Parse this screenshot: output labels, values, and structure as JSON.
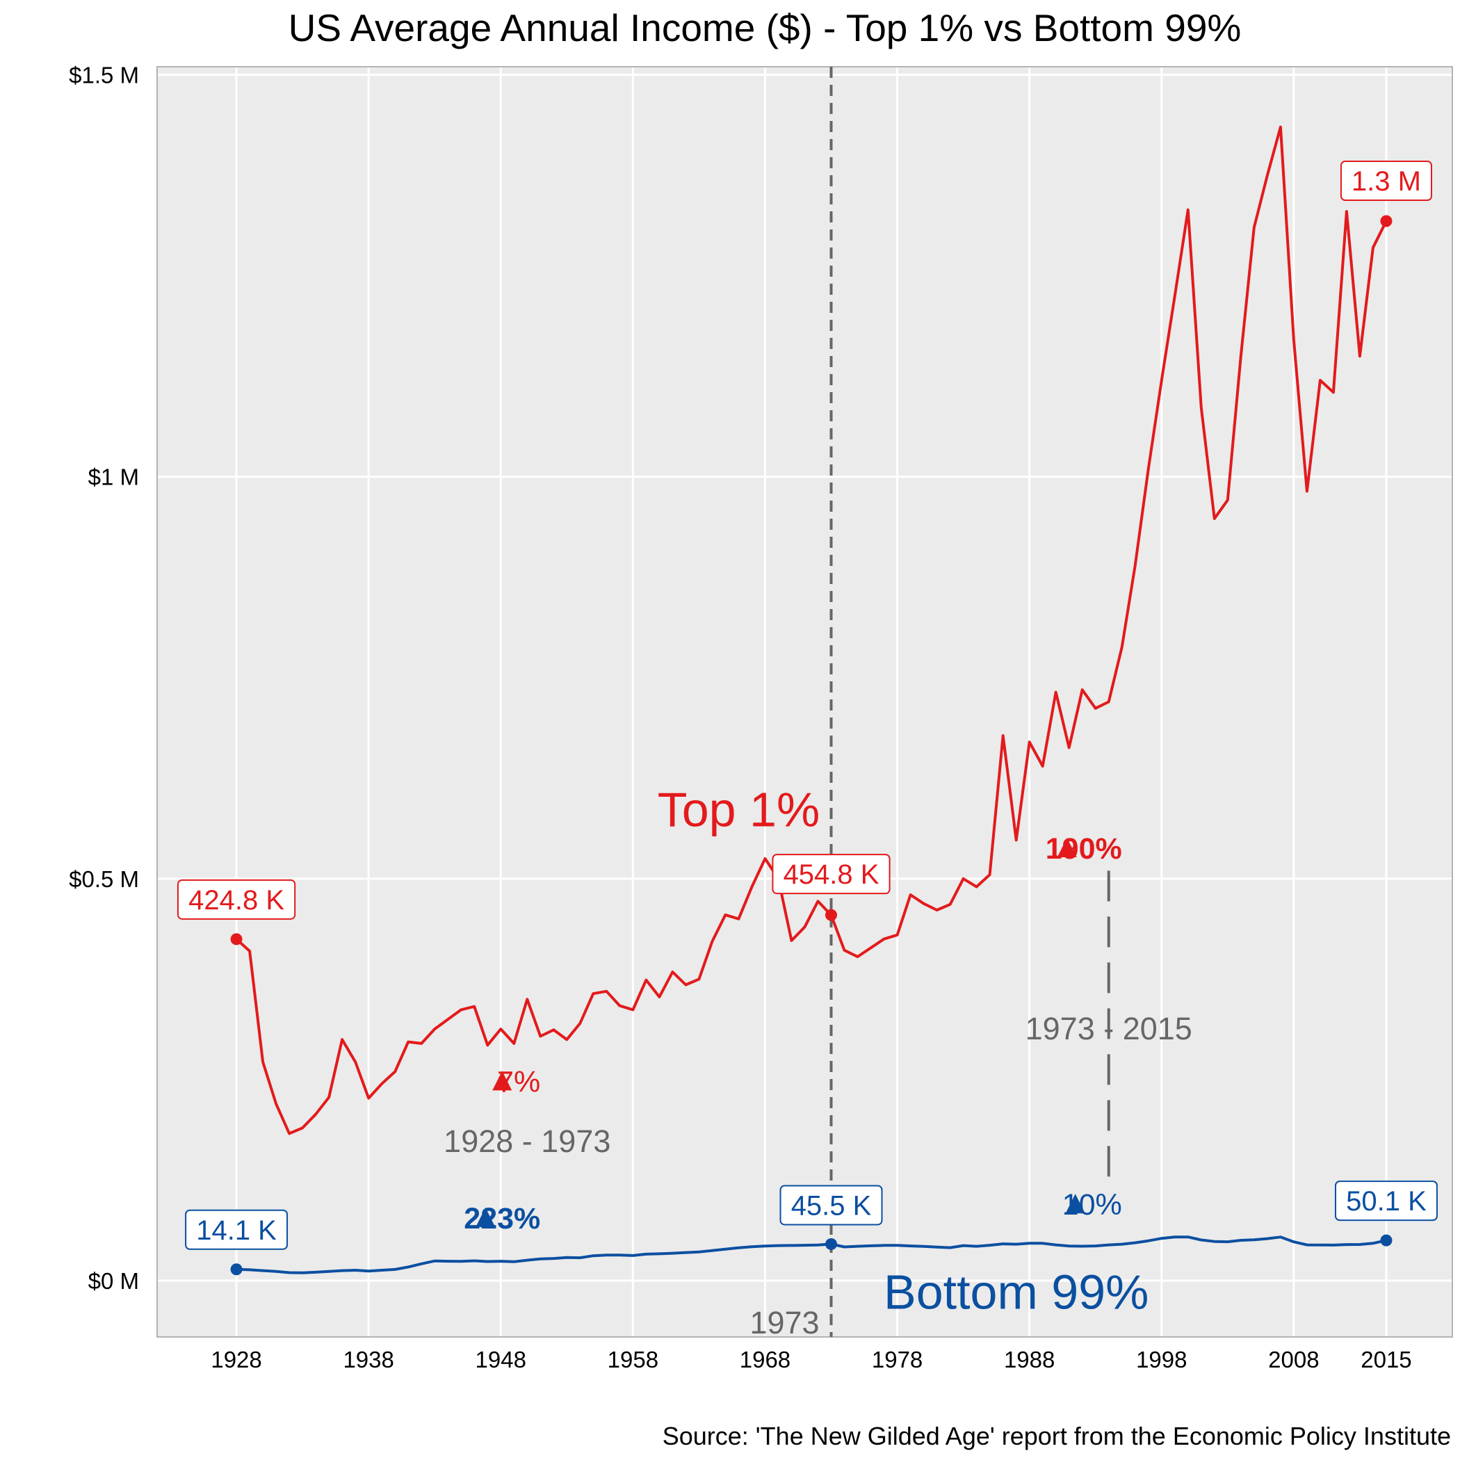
{
  "chart_data": {
    "type": "line",
    "title": "US Average Annual Income ($) - Top 1% vs Bottom 99%",
    "caption": "Source: 'The New Gilded Age' report from the Economic Policy Institute",
    "xlim": [
      1922,
      2020
    ],
    "ylim": [
      -70000,
      1510000
    ],
    "x_ticks": [
      1928,
      1938,
      1948,
      1958,
      1968,
      1978,
      1988,
      1998,
      2008,
      2015
    ],
    "x_tick_labels": [
      "1928",
      "1938",
      "1948",
      "1958",
      "1968",
      "1978",
      "1988",
      "1998",
      "2008",
      "2015"
    ],
    "y_ticks": [
      0,
      500000,
      1000000,
      1500000
    ],
    "y_tick_labels": [
      "$0 M",
      "$0.5 M",
      "$1 M",
      "$1.5 M"
    ],
    "grid": true,
    "vline": {
      "x": 1973,
      "label": "1973"
    },
    "colors": {
      "top": "#e31a1c",
      "bottom": "#0b4fa0",
      "gray": "#666666",
      "panel": "#ebebeb",
      "grid": "#ffffff"
    },
    "series": [
      {
        "key": "top",
        "name": "Top 1%",
        "x": [
          1928,
          1929,
          1930,
          1931,
          1932,
          1933,
          1934,
          1935,
          1936,
          1937,
          1938,
          1939,
          1940,
          1941,
          1942,
          1943,
          1944,
          1945,
          1946,
          1947,
          1948,
          1949,
          1950,
          1951,
          1952,
          1953,
          1954,
          1955,
          1956,
          1957,
          1958,
          1959,
          1960,
          1961,
          1962,
          1963,
          1964,
          1965,
          1966,
          1967,
          1968,
          1969,
          1970,
          1971,
          1972,
          1973,
          1974,
          1975,
          1976,
          1977,
          1978,
          1979,
          1980,
          1981,
          1982,
          1983,
          1984,
          1985,
          1986,
          1987,
          1988,
          1989,
          1990,
          1991,
          1992,
          1993,
          1994,
          1995,
          1996,
          1997,
          1998,
          1999,
          2000,
          2001,
          2002,
          2003,
          2004,
          2005,
          2006,
          2007,
          2008,
          2009,
          2010,
          2011,
          2012,
          2013,
          2014,
          2015
        ],
        "values": [
          424800,
          410000,
          272000,
          220000,
          183000,
          190000,
          207000,
          228000,
          300000,
          272000,
          227000,
          245000,
          260000,
          297000,
          295000,
          313000,
          325000,
          337000,
          341000,
          293000,
          313000,
          295000,
          350000,
          304000,
          312000,
          300000,
          320000,
          357000,
          360000,
          342000,
          337000,
          374000,
          353000,
          384000,
          368000,
          375000,
          422000,
          455000,
          450000,
          490000,
          525000,
          500000,
          423000,
          440000,
          472000,
          454800,
          411000,
          403000,
          414000,
          425000,
          430000,
          480000,
          469000,
          461000,
          468000,
          500000,
          490000,
          505000,
          678000,
          548000,
          670000,
          640000,
          732000,
          663000,
          735000,
          712000,
          720000,
          788000,
          890000,
          1010000,
          1120000,
          1225000,
          1332000,
          1086000,
          948000,
          971000,
          1150000,
          1310000,
          1375000,
          1435000,
          1170000,
          982000,
          1120000,
          1105000,
          1330000,
          1150000,
          1285000,
          1318000
        ],
        "start_label": "424.8 K",
        "mid_label": "454.8 K",
        "end_label": "1.3 M",
        "pct1": "7%",
        "pct2": "190%"
      },
      {
        "key": "bottom",
        "name": "Bottom 99%",
        "x": [
          1928,
          1929,
          1930,
          1931,
          1932,
          1933,
          1934,
          1935,
          1936,
          1937,
          1938,
          1939,
          1940,
          1941,
          1942,
          1943,
          1944,
          1945,
          1946,
          1947,
          1948,
          1949,
          1950,
          1951,
          1952,
          1953,
          1954,
          1955,
          1956,
          1957,
          1958,
          1959,
          1960,
          1961,
          1962,
          1963,
          1964,
          1965,
          1966,
          1967,
          1968,
          1969,
          1970,
          1971,
          1972,
          1973,
          1974,
          1975,
          1976,
          1977,
          1978,
          1979,
          1980,
          1981,
          1982,
          1983,
          1984,
          1985,
          1986,
          1987,
          1988,
          1989,
          1990,
          1991,
          1992,
          1993,
          1994,
          1995,
          1996,
          1997,
          1998,
          1999,
          2000,
          2001,
          2002,
          2003,
          2004,
          2005,
          2006,
          2007,
          2008,
          2009,
          2010,
          2011,
          2012,
          2013,
          2014,
          2015
        ],
        "values": [
          14100,
          13500,
          12500,
          11500,
          10000,
          9800,
          10500,
          11500,
          12500,
          13000,
          12000,
          13000,
          14000,
          17000,
          21000,
          24500,
          24200,
          24100,
          24700,
          23800,
          24200,
          23600,
          25500,
          27000,
          27600,
          28800,
          28500,
          31000,
          31900,
          31900,
          31300,
          33000,
          33400,
          34100,
          35000,
          35800,
          37500,
          39100,
          40900,
          42200,
          43100,
          43600,
          43800,
          44100,
          44300,
          45500,
          42000,
          42800,
          43400,
          43900,
          44000,
          43200,
          42600,
          41800,
          41000,
          43600,
          42800,
          44100,
          45800,
          45400,
          46500,
          46500,
          44500,
          43100,
          42900,
          43200,
          44500,
          45400,
          47200,
          49600,
          52600,
          54300,
          54400,
          50600,
          48700,
          48400,
          50200,
          50900,
          52300,
          54300,
          48300,
          44500,
          44400,
          44200,
          44900,
          45000,
          46500,
          50100
        ],
        "start_label": "14.1 K",
        "mid_label": "45.5 K",
        "end_label": "50.1 K",
        "pct1": "223%",
        "pct2": "10%"
      }
    ],
    "period_labels": [
      "1928 - 1973",
      "1973 - 2015"
    ]
  }
}
